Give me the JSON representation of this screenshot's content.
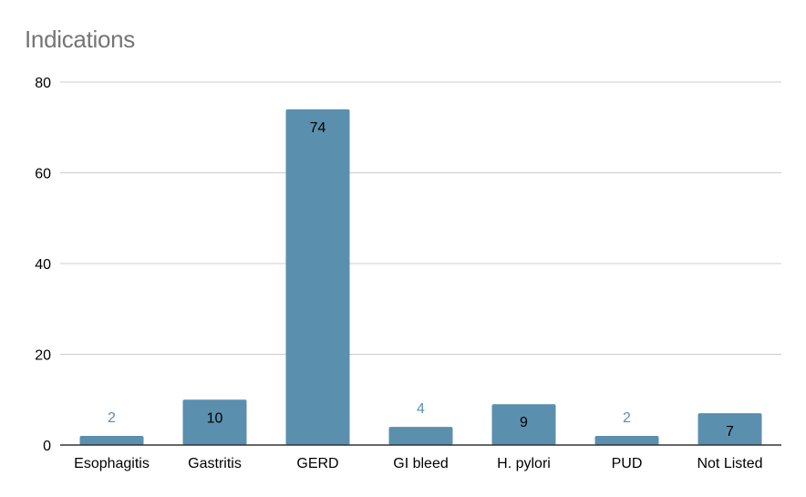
{
  "chart_data": {
    "type": "bar",
    "title": "Indications",
    "xlabel": "",
    "ylabel": "",
    "categories": [
      "Esophagitis",
      "Gastritis",
      "GERD",
      "GI bleed",
      "H. pylori",
      "PUD",
      "Not Listed"
    ],
    "values": [
      2,
      10,
      74,
      4,
      9,
      2,
      7
    ],
    "ylim": [
      0,
      80
    ],
    "yticks": [
      0,
      20,
      40,
      60,
      80
    ],
    "grid": true,
    "legend": "none",
    "bar_color": "#5b8fae",
    "inside_label_color": "#000000",
    "outside_label_color": "#5b8fae"
  }
}
